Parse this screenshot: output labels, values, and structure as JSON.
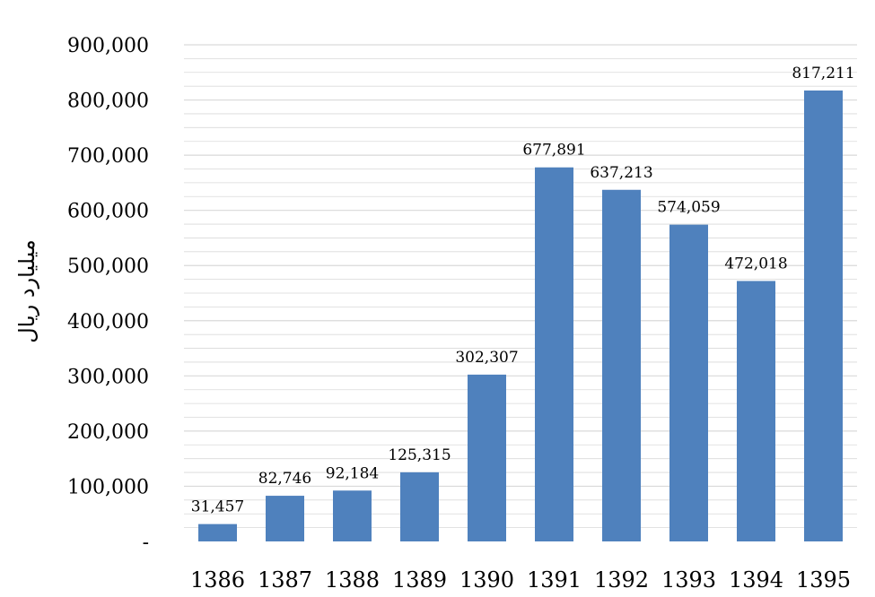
{
  "chart_data": {
    "type": "bar",
    "categories": [
      "1386",
      "1387",
      "1388",
      "1389",
      "1390",
      "1391",
      "1392",
      "1393",
      "1394",
      "1395"
    ],
    "values": [
      31457,
      82746,
      92184,
      125315,
      302307,
      677891,
      637213,
      574059,
      472018,
      817211
    ],
    "data_labels": [
      "31,457",
      "82,746",
      "92,184",
      "125,315",
      "302,307",
      "677,891",
      "637,213",
      "574,059",
      "472,018",
      "817,211"
    ],
    "ylabel": "میلیارد ریال",
    "yticks": [
      {
        "value": 0,
        "label": "-"
      },
      {
        "value": 100000,
        "label": "100,000"
      },
      {
        "value": 200000,
        "label": "200,000"
      },
      {
        "value": 300000,
        "label": "300,000"
      },
      {
        "value": 400000,
        "label": "400,000"
      },
      {
        "value": 500000,
        "label": "500,000"
      },
      {
        "value": 600000,
        "label": "600,000"
      },
      {
        "value": 700000,
        "label": "700,000"
      },
      {
        "value": 800000,
        "label": "800,000"
      },
      {
        "value": 900000,
        "label": "900,000"
      }
    ],
    "ylim": [
      0,
      900000
    ],
    "grid": true,
    "bar_color": "#4F81BD",
    "grid_color": "#D9D9D9"
  }
}
